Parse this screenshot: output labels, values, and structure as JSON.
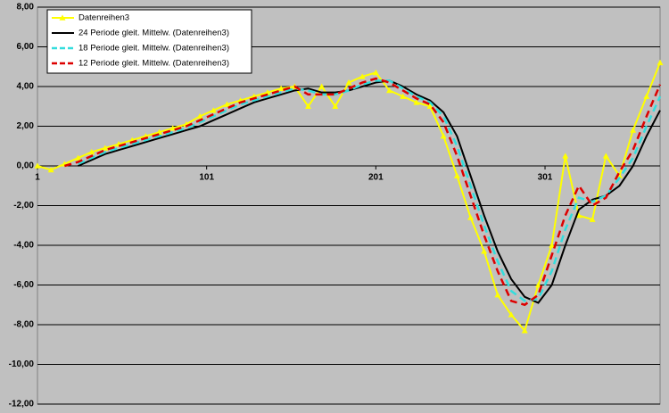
{
  "chart_data": {
    "type": "line",
    "x": [
      1,
      9,
      17,
      25,
      33,
      41,
      49,
      57,
      65,
      73,
      81,
      89,
      97,
      105,
      113,
      121,
      129,
      137,
      145,
      153,
      161,
      169,
      177,
      185,
      193,
      201,
      209,
      217,
      225,
      233,
      241,
      249,
      257,
      265,
      273,
      281,
      289,
      297,
      305,
      313,
      321,
      329,
      337,
      345,
      353,
      361,
      369
    ],
    "series": [
      {
        "name": "Datenreihen3",
        "color": "#ffff00",
        "marker": "triangle",
        "dash": false,
        "values": [
          0.0,
          -0.2,
          0.1,
          0.4,
          0.7,
          0.9,
          1.1,
          1.3,
          1.5,
          1.7,
          1.9,
          2.1,
          2.5,
          2.8,
          3.1,
          3.3,
          3.5,
          3.7,
          3.9,
          4.0,
          3.0,
          4.0,
          3.0,
          4.2,
          4.5,
          4.7,
          3.8,
          3.5,
          3.2,
          3.0,
          1.5,
          -0.5,
          -2.6,
          -4.3,
          -6.5,
          -7.5,
          -8.3,
          -6.0,
          -4.0,
          0.5,
          -2.5,
          -2.7,
          0.5,
          -0.5,
          1.8,
          3.5,
          5.2
        ]
      },
      {
        "name": "24 Periode gleit. Mittelw. (Datenreihen3)",
        "color": "#000000",
        "marker": null,
        "dash": false,
        "values": [
          null,
          null,
          null,
          0.0,
          0.3,
          0.6,
          0.8,
          1.0,
          1.2,
          1.4,
          1.6,
          1.8,
          2.0,
          2.3,
          2.6,
          2.9,
          3.2,
          3.4,
          3.6,
          3.8,
          3.9,
          3.7,
          3.7,
          3.8,
          4.0,
          4.2,
          4.3,
          4.0,
          3.6,
          3.3,
          2.7,
          1.5,
          -0.5,
          -2.5,
          -4.3,
          -5.7,
          -6.6,
          -6.9,
          -6.0,
          -4.0,
          -2.2,
          -1.7,
          -1.5,
          -1.0,
          0.0,
          1.5,
          2.8
        ]
      },
      {
        "name": "18 Periode gleit. Mittelw. (Datenreihen3)",
        "color": "#33dddd",
        "marker": null,
        "dash": true,
        "values": [
          null,
          null,
          null,
          0.1,
          0.4,
          0.7,
          0.9,
          1.1,
          1.3,
          1.5,
          1.7,
          1.9,
          2.2,
          2.5,
          2.8,
          3.1,
          3.3,
          3.5,
          3.7,
          3.9,
          3.8,
          3.6,
          3.6,
          3.8,
          4.1,
          4.3,
          4.3,
          3.9,
          3.5,
          3.2,
          2.5,
          1.0,
          -1.0,
          -3.0,
          -4.8,
          -6.3,
          -6.8,
          -6.7,
          -5.3,
          -3.2,
          -1.6,
          -1.8,
          -1.5,
          -0.6,
          0.4,
          2.0,
          3.5
        ]
      },
      {
        "name": "12 Periode gleit. Mittelw. (Datenreihen3)",
        "color": "#dd0000",
        "marker": null,
        "dash": true,
        "values": [
          null,
          null,
          0.0,
          0.2,
          0.5,
          0.8,
          1.0,
          1.2,
          1.4,
          1.6,
          1.8,
          2.0,
          2.3,
          2.6,
          2.9,
          3.2,
          3.4,
          3.6,
          3.8,
          4.0,
          3.6,
          3.6,
          3.6,
          3.9,
          4.2,
          4.4,
          4.2,
          3.8,
          3.4,
          3.1,
          2.2,
          0.5,
          -1.5,
          -3.5,
          -5.3,
          -6.8,
          -7.0,
          -6.5,
          -4.5,
          -2.5,
          -1.0,
          -2.0,
          -1.6,
          -0.3,
          0.8,
          2.5,
          4.1
        ]
      }
    ],
    "xlim": [
      1,
      369
    ],
    "xticks": [
      1,
      101,
      201,
      301
    ],
    "ylim": [
      -12,
      8
    ],
    "yticks": [
      {
        "value": -12,
        "label": "-12,00"
      },
      {
        "value": -10,
        "label": "-10,00"
      },
      {
        "value": -8,
        "label": "-8,00"
      },
      {
        "value": -6,
        "label": "-6,00"
      },
      {
        "value": -4,
        "label": "-4,00"
      },
      {
        "value": -2,
        "label": "-2,00"
      },
      {
        "value": 0,
        "label": "0,00"
      },
      {
        "value": 2,
        "label": "2,00"
      },
      {
        "value": 4,
        "label": "4,00"
      },
      {
        "value": 6,
        "label": "6,00"
      },
      {
        "value": 8,
        "label": "8,00"
      }
    ],
    "grid": true,
    "legend": "top-left"
  }
}
